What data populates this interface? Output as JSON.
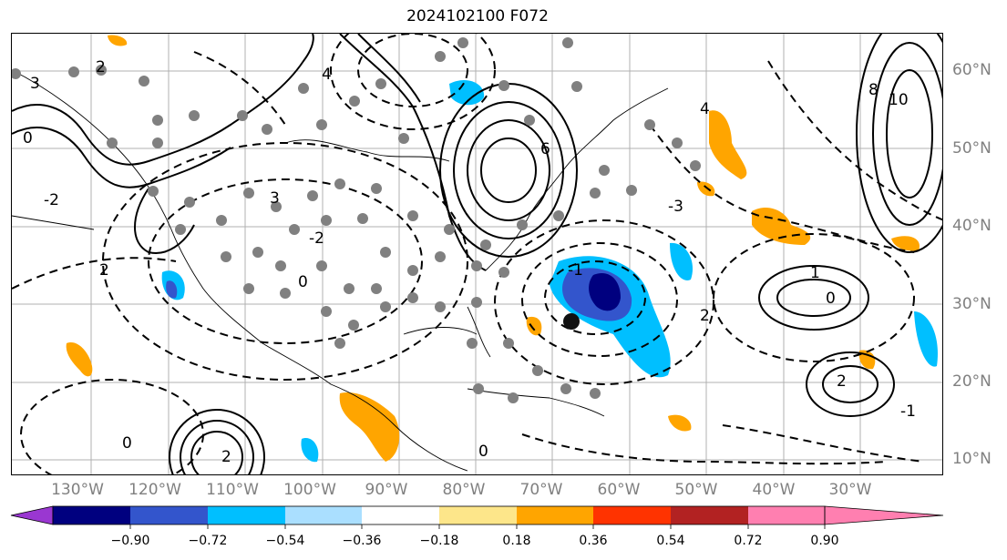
{
  "title": "2024102100 F072",
  "longitude_labels": [
    "130°W",
    "120°W",
    "110°W",
    "100°W",
    "90°W",
    "80°W",
    "70°W",
    "60°W",
    "50°W",
    "40°W",
    "30°W"
  ],
  "latitude_labels": [
    "60°N",
    "50°N",
    "40°N",
    "30°N",
    "20°N",
    "10°N"
  ],
  "colorbar": {
    "ticks": [
      "−0.90",
      "−0.72",
      "−0.54",
      "−0.36",
      "−0.18",
      "0.18",
      "0.36",
      "0.54",
      "0.72",
      "0.90"
    ],
    "colors": [
      "#9a37d1",
      "#00007f",
      "#3355cc",
      "#00bfff",
      "#aadfff",
      "#ffffff",
      "#fde68a",
      "#ffa500",
      "#ff3300",
      "#b22222",
      "#ff7fb0"
    ]
  },
  "contour_labels": [
    "2",
    "3",
    "0",
    "4",
    "6",
    "8",
    "10",
    "-2",
    "-3",
    "-1",
    "1",
    "2",
    "4",
    "3"
  ],
  "storm_center_marker": "black-dot"
}
